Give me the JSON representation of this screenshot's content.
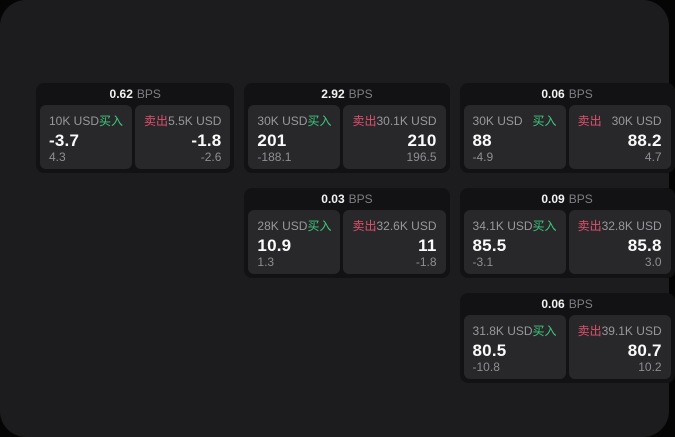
{
  "page": {
    "background": "#050505",
    "panel_background": "#1c1c1e"
  },
  "colors": {
    "card_background": "#121214",
    "tile_background": "#28282a",
    "buy_accent": "#3ec97e",
    "sell_accent": "#e0506e",
    "text_primary": "#fafafa",
    "text_secondary": "#98989d"
  },
  "labels": {
    "bps_unit": "BPS",
    "buy": "买入",
    "sell": "卖出"
  },
  "cards": [
    {
      "row": 1,
      "col": 1,
      "bps": "0.62",
      "buy": {
        "amount": "10K USD",
        "price": "-3.7",
        "delta": "4.3"
      },
      "sell": {
        "amount": "5.5K USD",
        "price": "-1.8",
        "delta": "-2.6"
      }
    },
    {
      "row": 1,
      "col": 2,
      "bps": "2.92",
      "buy": {
        "amount": "30K USD",
        "price": "201",
        "delta": "-188.1"
      },
      "sell": {
        "amount": "30.1K USD",
        "price": "210",
        "delta": "196.5"
      }
    },
    {
      "row": 1,
      "col": 3,
      "bps": "0.06",
      "buy": {
        "amount": "30K USD",
        "price": "88",
        "delta": "-4.9"
      },
      "sell": {
        "amount": "30K USD",
        "price": "88.2",
        "delta": "4.7"
      }
    },
    {
      "row": 2,
      "col": 2,
      "bps": "0.03",
      "buy": {
        "amount": "28K USD",
        "price": "10.9",
        "delta": "1.3"
      },
      "sell": {
        "amount": "32.6K USD",
        "price": "11",
        "delta": "-1.8"
      }
    },
    {
      "row": 2,
      "col": 3,
      "bps": "0.09",
      "buy": {
        "amount": "34.1K USD",
        "price": "85.5",
        "delta": "-3.1"
      },
      "sell": {
        "amount": "32.8K USD",
        "price": "85.8",
        "delta": "3.0"
      }
    },
    {
      "row": 3,
      "col": 3,
      "bps": "0.06",
      "buy": {
        "amount": "31.8K USD",
        "price": "80.5",
        "delta": "-10.8"
      },
      "sell": {
        "amount": "39.1K USD",
        "price": "80.7",
        "delta": "10.2"
      }
    }
  ]
}
